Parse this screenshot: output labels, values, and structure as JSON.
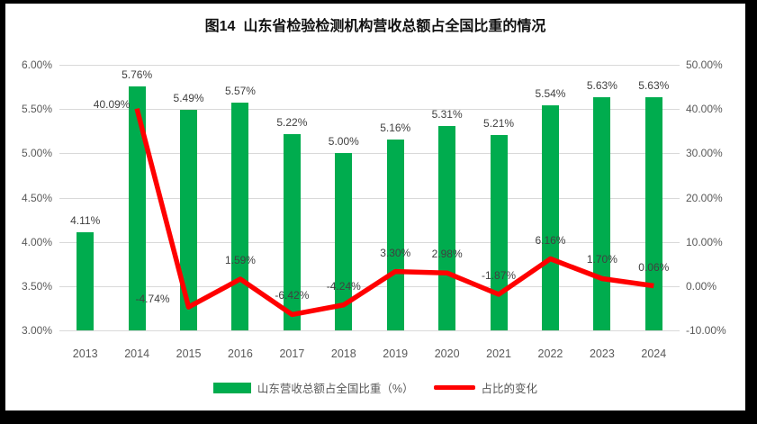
{
  "chart_data": {
    "type": "combo-bar-line",
    "title": "图14  山东省检验检测机构营收总额占全国比重的情况",
    "categories": [
      "2013",
      "2014",
      "2015",
      "2016",
      "2017",
      "2018",
      "2019",
      "2020",
      "2021",
      "2022",
      "2023",
      "2024"
    ],
    "series": [
      {
        "name": "山东营收总额占全国比重（%）",
        "type": "bar",
        "axis": "left",
        "color": "#00AC4E",
        "values": [
          4.11,
          5.76,
          5.49,
          5.57,
          5.22,
          5.0,
          5.16,
          5.31,
          5.21,
          5.54,
          5.63,
          5.63
        ],
        "labels": [
          "4.11%",
          "5.76%",
          "5.49%",
          "5.57%",
          "5.22%",
          "5.00%",
          "5.16%",
          "5.31%",
          "5.21%",
          "5.54%",
          "5.63%",
          "5.63%"
        ]
      },
      {
        "name": "占比的变化",
        "type": "line",
        "axis": "right",
        "color": "#FF0000",
        "values": [
          null,
          40.09,
          -4.74,
          1.59,
          -6.42,
          -4.24,
          3.3,
          2.98,
          -1.87,
          6.16,
          1.7,
          0.06
        ],
        "labels": [
          null,
          "40.09%",
          "-4.74%",
          "1.59%",
          "-6.42%",
          "-4.24%",
          "3.30%",
          "2.98%",
          "-1.87%",
          "6.16%",
          "1.70%",
          "0.06%"
        ]
      }
    ],
    "left_axis": {
      "min": 3,
      "max": 6,
      "ticks": [
        "6.00%",
        "5.50%",
        "5.00%",
        "4.50%",
        "4.00%",
        "3.50%",
        "3.00%"
      ]
    },
    "right_axis": {
      "min": -10,
      "max": 50,
      "ticks": [
        "50.00%",
        "40.00%",
        "30.00%",
        "20.00%",
        "10.00%",
        "0.00%",
        "-10.00%"
      ]
    },
    "grid": true,
    "gridline_color": "#d9d9d9",
    "legend_position": "bottom",
    "frame_color": "#000000",
    "background_color": "#ffffff"
  }
}
